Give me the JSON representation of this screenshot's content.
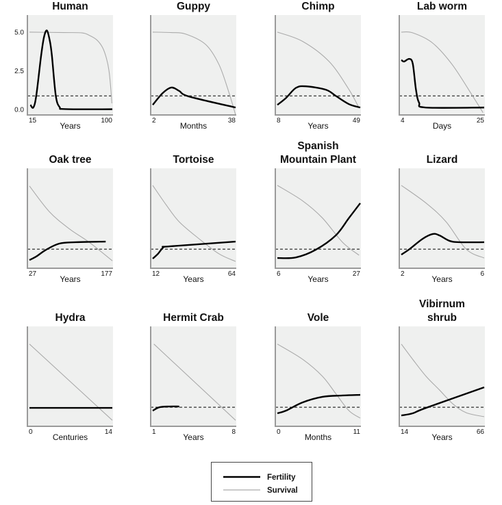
{
  "chart_data": {
    "type": "line",
    "y_axis": {
      "ticks": [
        "0.0",
        "2.5",
        "5.0"
      ],
      "ylim": [
        -0.35,
        6.1
      ],
      "shown_on": "Human"
    },
    "reference_line": {
      "style": "dashed",
      "y": 0.88
    },
    "legend": {
      "placement": "bottom-center",
      "entries": [
        {
          "name": "Fertility",
          "color": "#000000"
        },
        {
          "name": "Survival",
          "color": "#aaaaaa"
        }
      ]
    },
    "colors": {
      "fertility": "#000000",
      "survival": "#aaaaaa",
      "plot_bg": "#eff0ef",
      "axis": "#9a9a9a"
    },
    "panels": [
      {
        "title": [
          "Human"
        ],
        "xlabel": "Years",
        "xticks": [
          "15",
          "100"
        ],
        "xlim": [
          15,
          100
        ],
        "dashed": true,
        "fertility": [
          [
            16,
            0.3
          ],
          [
            19,
            0.13
          ],
          [
            22,
            0.9
          ],
          [
            27,
            3.5
          ],
          [
            30,
            4.7
          ],
          [
            33,
            5.1
          ],
          [
            36,
            4.4
          ],
          [
            38,
            3.5
          ],
          [
            42,
            0.9
          ],
          [
            46,
            0.15
          ],
          [
            52,
            0.03
          ],
          [
            100,
            0.02
          ]
        ],
        "survival": [
          [
            15,
            5.0
          ],
          [
            50,
            4.97
          ],
          [
            69,
            4.95
          ],
          [
            76,
            4.8
          ],
          [
            84,
            4.5
          ],
          [
            90,
            4.0
          ],
          [
            94,
            3.3
          ],
          [
            96.6,
            2.5
          ],
          [
            98.5,
            1.3
          ],
          [
            99.5,
            0.4
          ]
        ]
      },
      {
        "title": [
          "Guppy"
        ],
        "xlabel": "Months",
        "xticks": [
          "2",
          "38"
        ],
        "xlim": [
          2,
          38
        ],
        "dashed": true,
        "fertility": [
          [
            2,
            0.3
          ],
          [
            6.3,
            1.06
          ],
          [
            10.1,
            1.42
          ],
          [
            13.5,
            1.2
          ],
          [
            17.8,
            0.84
          ],
          [
            38,
            0.13
          ]
        ],
        "survival": [
          [
            2,
            5.0
          ],
          [
            10,
            4.97
          ],
          [
            16.4,
            4.87
          ],
          [
            25,
            4.2
          ],
          [
            30.8,
            2.9
          ],
          [
            35.1,
            1.1
          ],
          [
            38,
            -0.35
          ]
        ]
      },
      {
        "title": [
          "Chimp"
        ],
        "xlabel": "Years",
        "xticks": [
          "8",
          "49"
        ],
        "xlim": [
          8,
          49
        ],
        "dashed": true,
        "fertility": [
          [
            8,
            0.3
          ],
          [
            12.3,
            0.75
          ],
          [
            17.2,
            1.4
          ],
          [
            22.1,
            1.5
          ],
          [
            32,
            1.28
          ],
          [
            36.9,
            0.88
          ],
          [
            43.4,
            0.35
          ],
          [
            49,
            0.13
          ]
        ],
        "survival": [
          [
            8,
            5.0
          ],
          [
            20.5,
            4.4
          ],
          [
            33.6,
            3.1
          ],
          [
            43.4,
            1.3
          ],
          [
            48.3,
            0.13
          ]
        ]
      },
      {
        "title": [
          "Lab worm"
        ],
        "xlabel": "Days",
        "xticks": [
          "4",
          "25"
        ],
        "xlim": [
          4,
          25
        ],
        "dashed": true,
        "fertility": [
          [
            4,
            3.2
          ],
          [
            4.7,
            3.1
          ],
          [
            6,
            3.27
          ],
          [
            6.9,
            2.96
          ],
          [
            7.7,
            1.3
          ],
          [
            8.5,
            0.44
          ],
          [
            10.2,
            0.13
          ],
          [
            25,
            0.13
          ]
        ],
        "survival": [
          [
            4,
            5.0
          ],
          [
            6.9,
            4.95
          ],
          [
            11.9,
            4.3
          ],
          [
            16.9,
            2.9
          ],
          [
            22,
            0.9
          ],
          [
            24.7,
            -0.2
          ]
        ]
      },
      {
        "title": [
          "Oak tree"
        ],
        "xlabel": "Years",
        "xticks": [
          "27",
          "177"
        ],
        "xlim": [
          27,
          177
        ],
        "dashed": true,
        "fertility": [
          [
            27,
            0.18
          ],
          [
            39,
            0.4
          ],
          [
            57,
            0.84
          ],
          [
            81,
            1.24
          ],
          [
            111,
            1.33
          ],
          [
            165,
            1.37
          ]
        ],
        "survival": [
          [
            27,
            4.96
          ],
          [
            63,
            3.3
          ],
          [
            99,
            2.2
          ],
          [
            135,
            1.33
          ],
          [
            177,
            0.13
          ]
        ]
      },
      {
        "title": [
          "Tortoise"
        ],
        "xlabel": "Years",
        "xticks": [
          "12",
          "64"
        ],
        "xlim": [
          12,
          64
        ],
        "dashed": true,
        "fertility": [
          [
            12,
            0.27
          ],
          [
            15.3,
            0.58
          ],
          [
            18.7,
            1.0
          ],
          [
            22.4,
            1.06
          ],
          [
            64,
            1.37
          ]
        ],
        "survival": [
          [
            12,
            5.0
          ],
          [
            20.3,
            3.76
          ],
          [
            28.6,
            2.65
          ],
          [
            41.1,
            1.55
          ],
          [
            53.6,
            0.58
          ],
          [
            64,
            0.09
          ]
        ]
      },
      {
        "title": [
          "Spanish",
          "Mountain Plant"
        ],
        "xlabel": "Years",
        "xticks": [
          "6",
          "27"
        ],
        "xlim": [
          6,
          27
        ],
        "dashed": true,
        "fertility": [
          [
            6,
            0.31
          ],
          [
            10.7,
            0.35
          ],
          [
            15.7,
            0.84
          ],
          [
            20.8,
            1.77
          ],
          [
            24.1,
            2.88
          ],
          [
            27,
            3.85
          ]
        ],
        "survival": [
          [
            6,
            5.0
          ],
          [
            12.4,
            4.0
          ],
          [
            17.4,
            2.9
          ],
          [
            22.5,
            1.33
          ],
          [
            26.7,
            0.49
          ]
        ]
      },
      {
        "title": [
          "Lizard"
        ],
        "xlabel": "Years",
        "xticks": [
          "2",
          "6"
        ],
        "xlim": [
          2,
          6
        ],
        "dashed": true,
        "fertility": [
          [
            2,
            0.53
          ],
          [
            2.39,
            0.88
          ],
          [
            3.03,
            1.55
          ],
          [
            3.52,
            1.86
          ],
          [
            3.84,
            1.77
          ],
          [
            4.32,
            1.42
          ],
          [
            4.81,
            1.33
          ],
          [
            6,
            1.33
          ]
        ],
        "survival": [
          [
            2,
            5.0
          ],
          [
            3.2,
            3.85
          ],
          [
            4.16,
            2.65
          ],
          [
            5.13,
            0.88
          ],
          [
            6,
            0.31
          ]
        ]
      },
      {
        "title": [
          "Hydra"
        ],
        "xlabel": "Centuries",
        "xticks": [
          "0",
          "14"
        ],
        "xlim": [
          0,
          14
        ],
        "dashed": false,
        "fertility": [
          [
            0,
            0.84
          ],
          [
            14,
            0.84
          ]
        ],
        "survival": [
          [
            0,
            4.96
          ],
          [
            14,
            0.04
          ]
        ]
      },
      {
        "title": [
          "Hermit Crab"
        ],
        "xlabel": "Years",
        "xticks": [
          "1",
          "8"
        ],
        "xlim": [
          1,
          8
        ],
        "dashed": true,
        "fertility": [
          [
            1,
            0.66
          ],
          [
            1.56,
            0.88
          ],
          [
            2.4,
            0.93
          ],
          [
            3.24,
            0.93
          ]
        ],
        "survival": [
          [
            1.1,
            4.96
          ],
          [
            8,
            0.04
          ]
        ]
      },
      {
        "title": [
          "Vole"
        ],
        "xlabel": "Months",
        "xticks": [
          "0",
          "11"
        ],
        "xlim": [
          0,
          11
        ],
        "dashed": true,
        "fertility": [
          [
            0,
            0.49
          ],
          [
            1.14,
            0.66
          ],
          [
            3.34,
            1.19
          ],
          [
            5.98,
            1.55
          ],
          [
            8.62,
            1.64
          ],
          [
            11,
            1.68
          ]
        ],
        "survival": [
          [
            0,
            4.96
          ],
          [
            3.34,
            3.98
          ],
          [
            5.98,
            2.88
          ],
          [
            7.74,
            1.77
          ],
          [
            9.5,
            0.66
          ],
          [
            11,
            0.18
          ]
        ]
      },
      {
        "title": [
          "Vibirnum",
          "shrub"
        ],
        "xlabel": "Years",
        "xticks": [
          "14",
          "66"
        ],
        "xlim": [
          14,
          66
        ],
        "dashed": true,
        "fertility": [
          [
            14,
            0.35
          ],
          [
            21.1,
            0.49
          ],
          [
            29.5,
            0.84
          ],
          [
            66,
            2.17
          ]
        ],
        "survival": [
          [
            14,
            4.96
          ],
          [
            21.1,
            3.98
          ],
          [
            29.5,
            2.88
          ],
          [
            37.9,
            2.0
          ],
          [
            46.3,
            1.1
          ],
          [
            54.7,
            0.53
          ],
          [
            66,
            0.27
          ]
        ]
      }
    ]
  }
}
